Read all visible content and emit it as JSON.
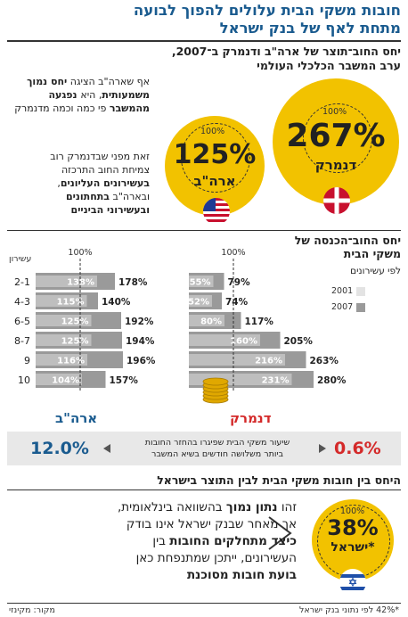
{
  "header": {
    "title_line1": "חובות משקי הבית עלולים להפוך לבועה",
    "title_line2": "מתחת לאף של בנק ישראל"
  },
  "top": {
    "subtitle_line1": "יחס החוב־תוצר של ארה\"ב ודנמרק ב־2007,",
    "subtitle_line2": "ערב המשבר הכלכלי העולמי",
    "para1": [
      "אף שארה\"ב הציגה ",
      "יחס",
      " נמוך משמעותית",
      ", היא",
      " נפגעה מהמשבר",
      " פי",
      " כמה וכמה מדנמרק"
    ],
    "para2": [
      "זאת מפני שבדנמרק רוב",
      "צמיחת החוב התרכזה",
      "בעשירונים העליונים",
      ",",
      "ובארה\"ב ",
      "בתחתונים",
      "ובעשירוני הביניים"
    ],
    "usa": {
      "value": "125%",
      "label": "ארה\"ב",
      "ref": "100%"
    },
    "denmark": {
      "value": "267%",
      "label": "דנמרק",
      "ref": "100%"
    }
  },
  "chart_data": {
    "type": "bar",
    "title": "יחס החוב־הכנסה של משקי הבית",
    "subtitle": "לפי עשירונים",
    "legend": [
      {
        "name": "2001",
        "color": "#e3e3e3"
      },
      {
        "name": "2007",
        "color": "#9a9a9a"
      }
    ],
    "ref_label": "100%",
    "y_label": "עשירון",
    "deciles": [
      "2-1",
      "4-3",
      "6-5",
      "8-7",
      "9",
      "10"
    ],
    "xlim": [
      0,
      300
    ],
    "countries": [
      {
        "name": "ארה\"ב",
        "v2001": [
          138,
          115,
          125,
          125,
          116,
          104
        ],
        "v2007": [
          178,
          140,
          192,
          194,
          196,
          157
        ],
        "color": "#1a5b8f"
      },
      {
        "name": "דנמרק",
        "v2001": [
          55,
          52,
          80,
          160,
          216,
          231
        ],
        "v2007": [
          79,
          74,
          117,
          205,
          263,
          280
        ],
        "color": "#d42a2a"
      }
    ]
  },
  "banner": {
    "usa_value": "12.0%",
    "dk_value": "0.6%",
    "text_line1": "שיעור משקי הבית שפיגרו בהחזר החובות",
    "text_line2": "ביותר משלושה חודשים בשיא המשבר"
  },
  "israel": {
    "heading": "היחס בין חובות משקי הבית לבין התוצר בישראל",
    "value": "38%",
    "label": "ישראל*",
    "ref": "100%",
    "text": [
      [
        "זהו ",
        "נתון נמוך",
        " בהשוואה בינלאומית,"
      ],
      [
        "אך מאחר שבנק ישראל אינו בודק"
      ],
      [
        "כיצד מתחלקים החובות",
        " בין"
      ],
      [
        "העשירונים, ייתכן שמתנפחת כאן"
      ],
      [
        "בועת חובות מסוכנת"
      ]
    ]
  },
  "footer": {
    "note": "*42% לפי נתוני בנק ישראל",
    "source": "מקור: מקינזי"
  },
  "colors": {
    "yellow": "#f2c200",
    "blue": "#1a5b8f",
    "red": "#d42a2a"
  }
}
